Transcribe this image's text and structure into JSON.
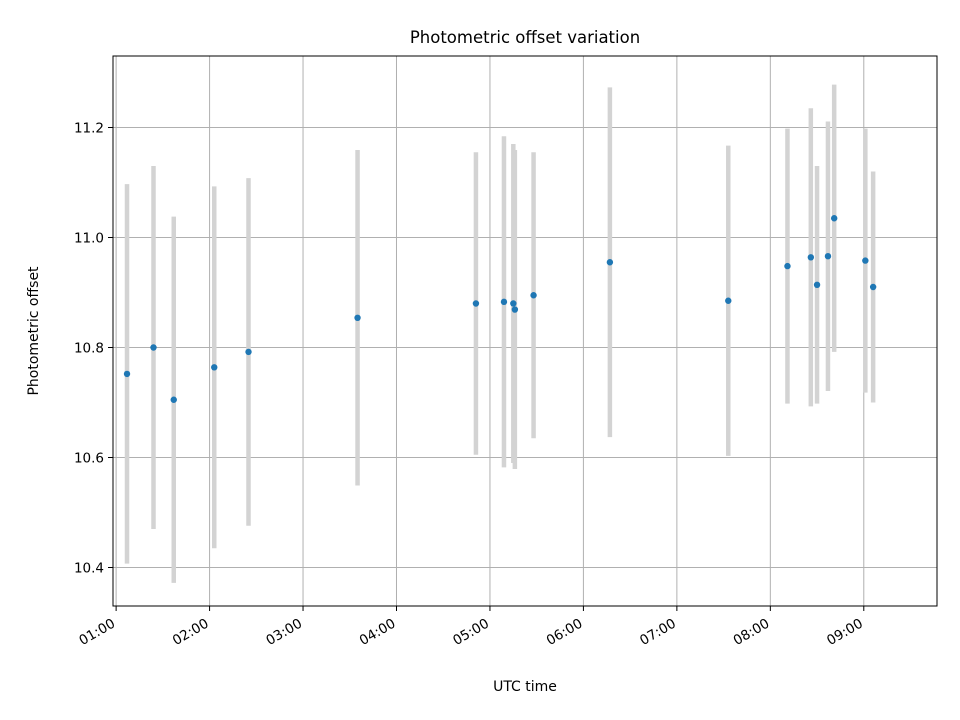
{
  "chart_data": {
    "type": "scatter",
    "title": "Photometric offset variation",
    "xlabel": "UTC time",
    "ylabel": "Photometric offset",
    "x_ticks": [
      "01:00",
      "02:00",
      "03:00",
      "04:00",
      "05:00",
      "06:00",
      "07:00",
      "08:00",
      "09:00"
    ],
    "y_ticks": [
      "10.4",
      "10.6",
      "10.8",
      "11.0",
      "11.2"
    ],
    "xlim": [
      "00:58",
      "09:47"
    ],
    "ylim": [
      10.33,
      11.33
    ],
    "grid": true,
    "point_color": "#1f77b4",
    "errorbar_color": "#d3d3d3",
    "points": [
      {
        "x": "01:07",
        "y": 10.752,
        "err": 0.345
      },
      {
        "x": "01:24",
        "y": 10.8,
        "err": 0.33
      },
      {
        "x": "01:37",
        "y": 10.705,
        "err": 0.333
      },
      {
        "x": "02:03",
        "y": 10.764,
        "err": 0.329
      },
      {
        "x": "02:25",
        "y": 10.792,
        "err": 0.316
      },
      {
        "x": "03:35",
        "y": 10.854,
        "err": 0.305
      },
      {
        "x": "04:51",
        "y": 10.88,
        "err": 0.275
      },
      {
        "x": "05:09",
        "y": 10.883,
        "err": 0.301
      },
      {
        "x": "05:15",
        "y": 10.88,
        "err": 0.29
      },
      {
        "x": "05:16",
        "y": 10.869,
        "err": 0.29
      },
      {
        "x": "05:28",
        "y": 10.895,
        "err": 0.26
      },
      {
        "x": "06:17",
        "y": 10.955,
        "err": 0.318
      },
      {
        "x": "07:33",
        "y": 10.885,
        "err": 0.282
      },
      {
        "x": "08:11",
        "y": 10.948,
        "err": 0.25
      },
      {
        "x": "08:26",
        "y": 10.964,
        "err": 0.271
      },
      {
        "x": "08:30",
        "y": 10.914,
        "err": 0.216
      },
      {
        "x": "08:37",
        "y": 10.966,
        "err": 0.245
      },
      {
        "x": "08:41",
        "y": 11.035,
        "err": 0.243
      },
      {
        "x": "09:01",
        "y": 10.958,
        "err": 0.24
      },
      {
        "x": "09:06",
        "y": 10.91,
        "err": 0.21
      }
    ]
  }
}
